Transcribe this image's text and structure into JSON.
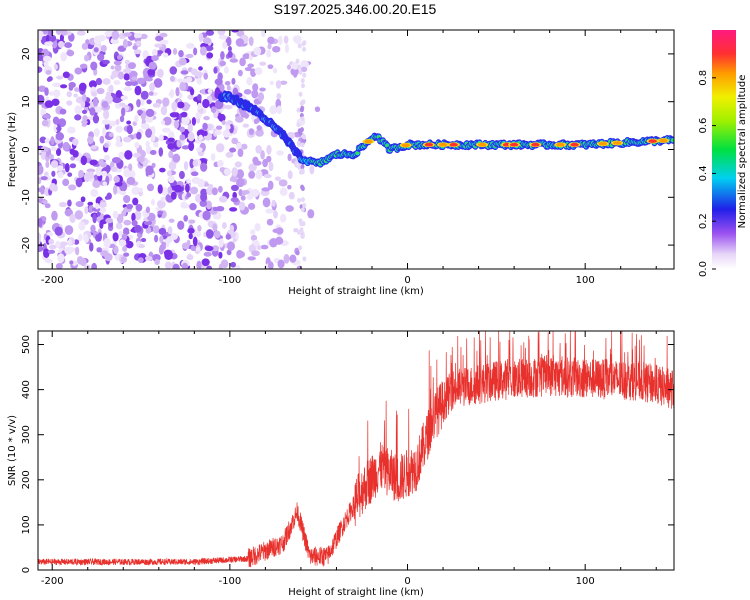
{
  "title": "S197.2025.346.00.20.E15",
  "chart_data": [
    {
      "type": "heatmap",
      "name": "spectrogram",
      "xlabel": "Height of straight line (km)",
      "ylabel": "Frequency (Hz)",
      "xlim": [
        -208,
        150
      ],
      "ylim": [
        -25,
        25
      ],
      "xticks": [
        -200,
        -100,
        0,
        100
      ],
      "yticks": [
        -20,
        -10,
        0,
        10,
        20
      ],
      "colorbar": {
        "label": "Normalized spectral amplitude",
        "range": [
          0,
          1
        ],
        "ticks": [
          0.0,
          0.2,
          0.4,
          0.6,
          0.8
        ],
        "tick_labels": [
          "0.0",
          "0.2",
          "0.4",
          "0.6",
          "0.8"
        ]
      },
      "ridge": {
        "description_points": [
          {
            "x": -100,
            "freq": 11
          },
          {
            "x": -85,
            "freq": 8
          },
          {
            "x": -70,
            "freq": 3
          },
          {
            "x": -60,
            "freq": -2
          },
          {
            "x": -50,
            "freq": -3
          },
          {
            "x": -40,
            "freq": -1
          },
          {
            "x": -30,
            "freq": -1
          },
          {
            "x": -18,
            "freq": 3
          },
          {
            "x": -10,
            "freq": 0
          },
          {
            "x": 0,
            "freq": 1
          },
          {
            "x": 50,
            "freq": 1
          },
          {
            "x": 100,
            "freq": 1
          },
          {
            "x": 150,
            "freq": 2
          }
        ],
        "noise_region_x": [
          -208,
          -60
        ]
      }
    },
    {
      "type": "line",
      "name": "snr",
      "xlabel": "Height of straight line (km)",
      "ylabel": "SNR (10 * v/v)",
      "xlim": [
        -208,
        150
      ],
      "ylim": [
        0,
        530
      ],
      "xticks": [
        -200,
        -100,
        0,
        100
      ],
      "yticks": [
        0,
        100,
        200,
        300,
        400,
        500
      ],
      "color": "#e8302c",
      "trend": [
        {
          "x": -208,
          "y": 18
        },
        {
          "x": -120,
          "y": 18
        },
        {
          "x": -90,
          "y": 25
        },
        {
          "x": -70,
          "y": 60
        },
        {
          "x": -62,
          "y": 130
        },
        {
          "x": -55,
          "y": 30
        },
        {
          "x": -45,
          "y": 30
        },
        {
          "x": -35,
          "y": 110
        },
        {
          "x": -25,
          "y": 180
        },
        {
          "x": -15,
          "y": 230
        },
        {
          "x": -5,
          "y": 200
        },
        {
          "x": 5,
          "y": 230
        },
        {
          "x": 15,
          "y": 340
        },
        {
          "x": 25,
          "y": 400
        },
        {
          "x": 50,
          "y": 420
        },
        {
          "x": 80,
          "y": 430
        },
        {
          "x": 100,
          "y": 425
        },
        {
          "x": 130,
          "y": 420
        },
        {
          "x": 150,
          "y": 400
        }
      ]
    }
  ]
}
